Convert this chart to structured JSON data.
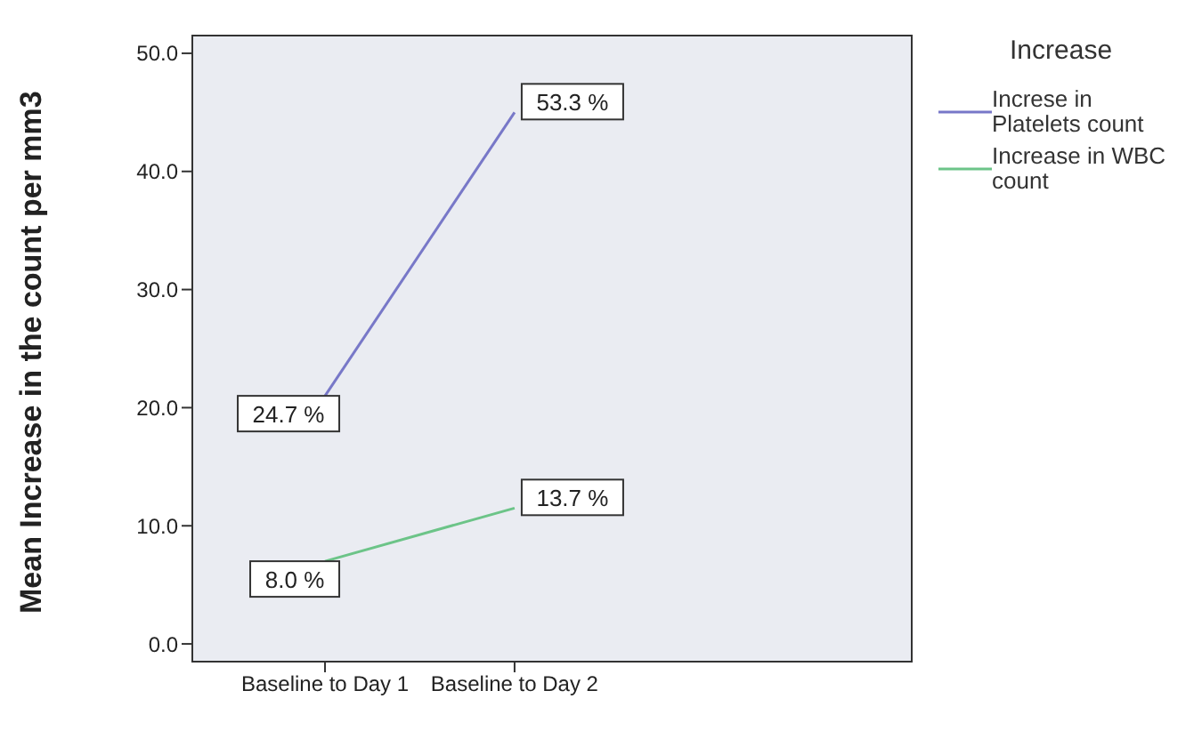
{
  "chart_data": {
    "type": "line",
    "ylabel": "Mean Increase in the count per mm3",
    "legend_title": "Increase",
    "legend": "top right",
    "marker": "none",
    "line_style": "solid",
    "categories": [
      "Baseline to Day 1",
      "Baseline to Day 2"
    ],
    "series": [
      {
        "name": "Increse in Platelets count",
        "color": "#7878c8",
        "values": [
          21.0,
          45.0
        ]
      },
      {
        "name": "Increase in WBC count",
        "color": "#6cc488",
        "values": [
          7.0,
          11.5
        ]
      }
    ],
    "annotations": [
      {
        "text": "24.7  %",
        "x": "Baseline to Day 1",
        "y": 21.0
      },
      {
        "text": "53.3  %",
        "x": "Baseline to Day 2",
        "y": 45.0
      },
      {
        "text": "8.0  %",
        "x": "Baseline to Day 1",
        "y": 7.0
      },
      {
        "text": "13.7  %",
        "x": "Baseline to Day 2",
        "y": 11.5
      }
    ],
    "ylim": [
      -1.5,
      51.5
    ],
    "yticks": [
      {
        "value": 0,
        "label": "0.0"
      },
      {
        "value": 10,
        "label": "10.0"
      },
      {
        "value": 20,
        "label": "20.0"
      },
      {
        "value": 30,
        "label": "30.0"
      },
      {
        "value": 40,
        "label": "40.0"
      },
      {
        "value": 50,
        "label": "50.0"
      }
    ]
  }
}
